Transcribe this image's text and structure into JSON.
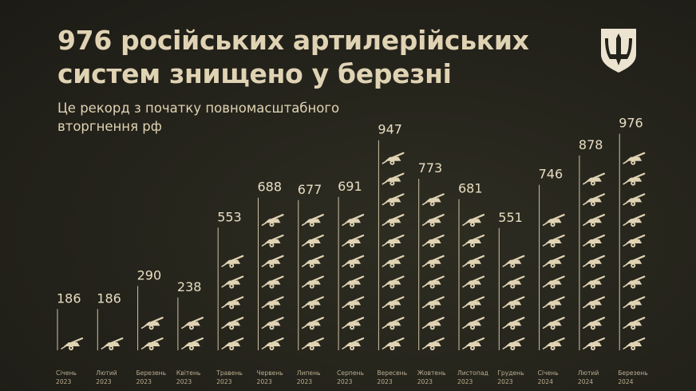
{
  "header": {
    "title": "976 російських артилерійських систем знищено у березні",
    "subtitle": "Це рекорд з початку повномасштабного вторгнення рф"
  },
  "colors": {
    "text": "#e0d3b4",
    "icon": "#e0d3b4",
    "background": "#24231b"
  },
  "chart_data": {
    "type": "bar",
    "title": "976 російських артилерійських систем знищено у березні",
    "subtitle": "Це рекорд з початку повномасштабного вторгнення рф",
    "categories": [
      {
        "month": "Січень",
        "year": "2023"
      },
      {
        "month": "Лютий",
        "year": "2023"
      },
      {
        "month": "Березень",
        "year": "2023"
      },
      {
        "month": "Квітень",
        "year": "2023"
      },
      {
        "month": "Травень",
        "year": "2023"
      },
      {
        "month": "Червень",
        "year": "2023"
      },
      {
        "month": "Липень",
        "year": "2023"
      },
      {
        "month": "Серпень",
        "year": "2023"
      },
      {
        "month": "Вересень",
        "year": "2023"
      },
      {
        "month": "Жовтень",
        "year": "2023"
      },
      {
        "month": "Листопад",
        "year": "2023"
      },
      {
        "month": "Грудень",
        "year": "2023"
      },
      {
        "month": "Січень",
        "year": "2024"
      },
      {
        "month": "Лютий",
        "year": "2024"
      },
      {
        "month": "Березень",
        "year": "2024"
      }
    ],
    "values": [
      186,
      186,
      290,
      238,
      553,
      688,
      677,
      691,
      947,
      773,
      681,
      551,
      746,
      878,
      976
    ],
    "xlabel": "",
    "ylabel": "",
    "ylim": [
      0,
      1000
    ],
    "grid": false,
    "legend": "none",
    "icon": "artillery-cannon-icon"
  }
}
